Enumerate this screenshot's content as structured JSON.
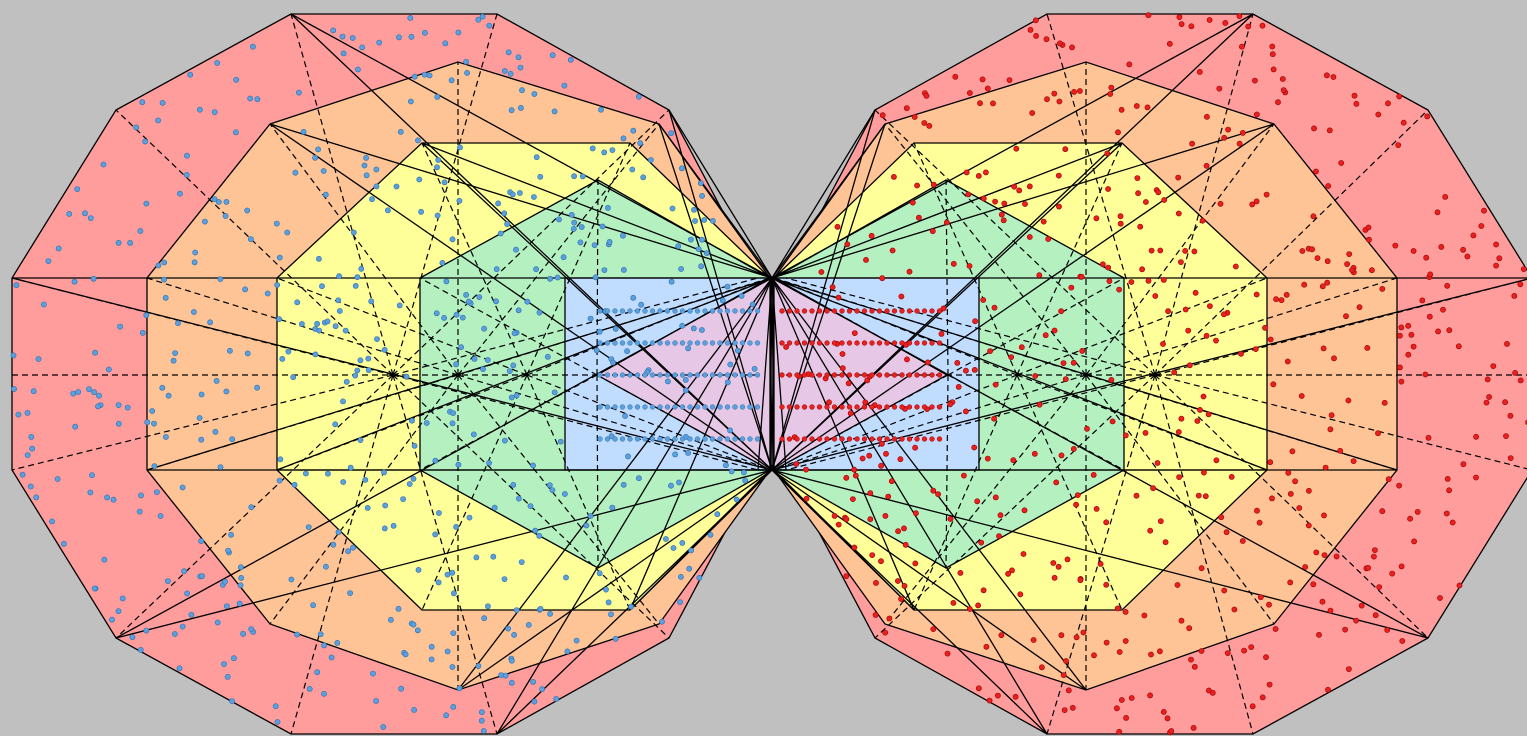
{
  "figure": {
    "background": "#c0c0c0",
    "outline_color": "#000000",
    "panels": [
      {
        "id": "left",
        "dot_color": "#5ba0dc",
        "dot_edge": "#2f6fae",
        "layers": [
          {
            "sides": 12,
            "fill": "#ff9c9c"
          },
          {
            "sides": 10,
            "fill": "#ffc496"
          },
          {
            "sides": 8,
            "fill": "#ffff99"
          },
          {
            "sides": 6,
            "fill": "#b4f0c0"
          },
          {
            "sides": 4,
            "fill": "#c0dcff"
          },
          {
            "sides": 2,
            "fill": "#e6c8e6"
          }
        ]
      },
      {
        "id": "right",
        "dot_color": "#e82020",
        "dot_edge": "#a00000",
        "layers": [
          {
            "sides": 12,
            "fill": "#ff9c9c"
          },
          {
            "sides": 10,
            "fill": "#ffc496"
          },
          {
            "sides": 8,
            "fill": "#ffff99"
          },
          {
            "sides": 6,
            "fill": "#b4f0c0"
          },
          {
            "sides": 4,
            "fill": "#c0dcff"
          },
          {
            "sides": 2,
            "fill": "#e6c8e6"
          }
        ]
      }
    ]
  }
}
